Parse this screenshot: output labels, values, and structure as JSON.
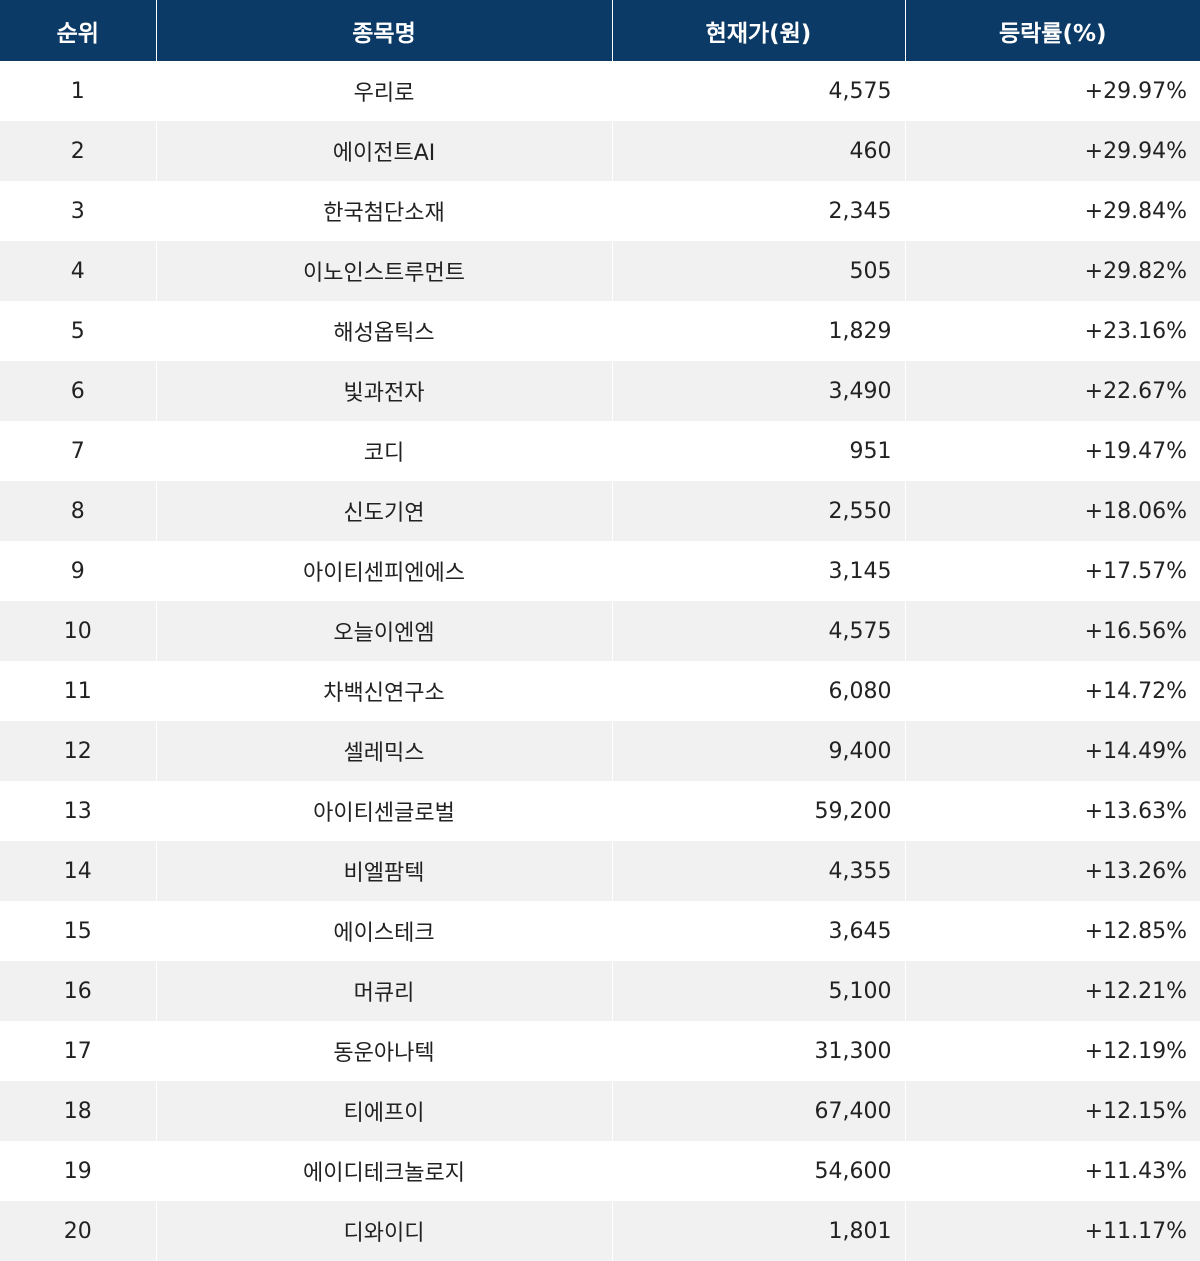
{
  "chart_data": {
    "type": "table",
    "columns": [
      "순위",
      "종목명",
      "현재가(원)",
      "등락률(%)"
    ],
    "rows": [
      {
        "rank": "1",
        "name": "우리로",
        "price": "4,575",
        "change": "+29.97%"
      },
      {
        "rank": "2",
        "name": "에이전트AI",
        "price": "460",
        "change": "+29.94%"
      },
      {
        "rank": "3",
        "name": "한국첨단소재",
        "price": "2,345",
        "change": "+29.84%"
      },
      {
        "rank": "4",
        "name": "이노인스트루먼트",
        "price": "505",
        "change": "+29.82%"
      },
      {
        "rank": "5",
        "name": "해성옵틱스",
        "price": "1,829",
        "change": "+23.16%"
      },
      {
        "rank": "6",
        "name": "빛과전자",
        "price": "3,490",
        "change": "+22.67%"
      },
      {
        "rank": "7",
        "name": "코디",
        "price": "951",
        "change": "+19.47%"
      },
      {
        "rank": "8",
        "name": "신도기연",
        "price": "2,550",
        "change": "+18.06%"
      },
      {
        "rank": "9",
        "name": "아이티센피엔에스",
        "price": "3,145",
        "change": "+17.57%"
      },
      {
        "rank": "10",
        "name": "오늘이엔엠",
        "price": "4,575",
        "change": "+16.56%"
      },
      {
        "rank": "11",
        "name": "차백신연구소",
        "price": "6,080",
        "change": "+14.72%"
      },
      {
        "rank": "12",
        "name": "셀레믹스",
        "price": "9,400",
        "change": "+14.49%"
      },
      {
        "rank": "13",
        "name": "아이티센글로벌",
        "price": "59,200",
        "change": "+13.63%"
      },
      {
        "rank": "14",
        "name": "비엘팜텍",
        "price": "4,355",
        "change": "+13.26%"
      },
      {
        "rank": "15",
        "name": "에이스테크",
        "price": "3,645",
        "change": "+12.85%"
      },
      {
        "rank": "16",
        "name": "머큐리",
        "price": "5,100",
        "change": "+12.21%"
      },
      {
        "rank": "17",
        "name": "동운아나텍",
        "price": "31,300",
        "change": "+12.19%"
      },
      {
        "rank": "18",
        "name": "티에프이",
        "price": "67,400",
        "change": "+12.15%"
      },
      {
        "rank": "19",
        "name": "에이디테크놀로지",
        "price": "54,600",
        "change": "+11.43%"
      },
      {
        "rank": "20",
        "name": "디와이디",
        "price": "1,801",
        "change": "+11.17%"
      }
    ]
  },
  "colors": {
    "header_bg": "#0c3a66",
    "header_text": "#ffffff",
    "row_alt_bg": "#f1f1f1",
    "row_bg": "#ffffff",
    "body_text": "#222222"
  }
}
